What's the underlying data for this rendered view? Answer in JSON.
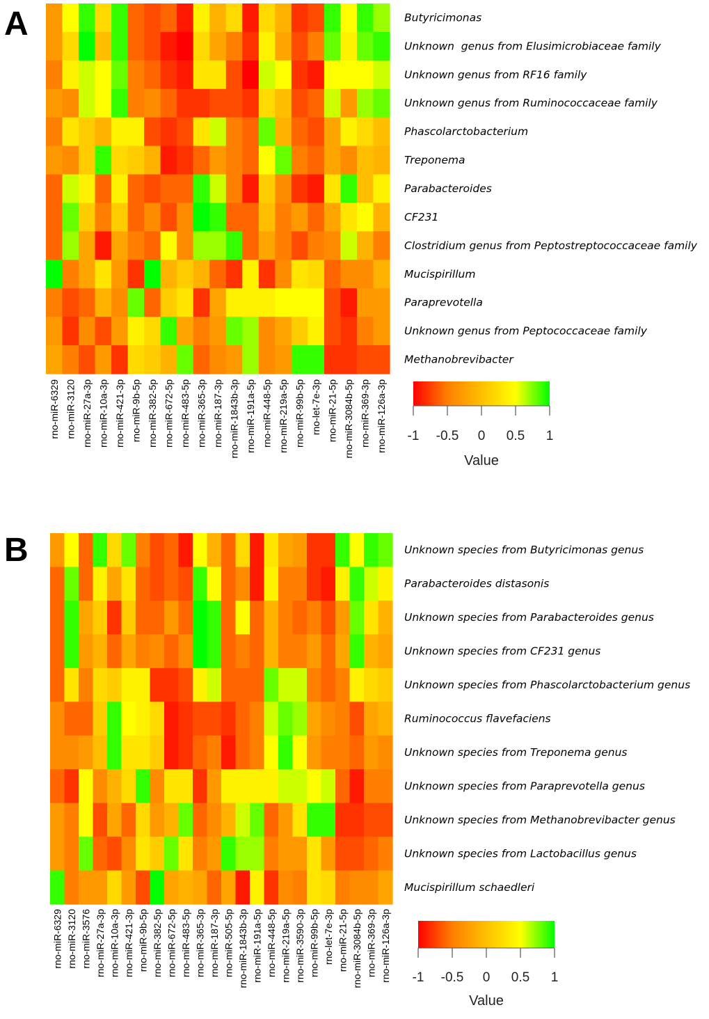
{
  "chart_data": [
    {
      "panel": "A",
      "type": "heatmap",
      "rows": [
        "Butyricimonas",
        "Unknown  genus from Elusimicrobiaceae family",
        "Unknown genus from RF16 family",
        "Unknown genus from Ruminococcaceae family",
        "Phascolarctobacterium",
        "Treponema",
        "Parabacteroides",
        "CF231",
        "Clostridium genus from Peptostreptococcaceae family",
        "Mucispirillum",
        "Paraprevotella",
        "Unknown genus from Peptococcaceae family",
        "Methanobrevibacter"
      ],
      "columns": [
        "rno-miR-6329",
        "rno-miR-3120",
        "rno-miR-27a-3p",
        "rno-miR-10a-3p",
        "rno-miR-421-3p",
        "rno-miR-9b-5p",
        "rno-miR-382-5p",
        "rno-miR-672-5p",
        "rno-miR-483-5p",
        "rno-miR-365-3p",
        "rno-miR-187-3p",
        "rno-miR-1843b-3p",
        "rno-miR-191a-5p",
        "rno-miR-448-5p",
        "rno-miR-219a-5p",
        "rno-miR-99b-5p",
        "rno-let-7e-3p",
        "rno-miR-21-5p",
        "rno-miR-3084b-5p",
        "rno-miR-369-3p",
        "rno-miR-126a-3p"
      ],
      "values": [
        [
          -0.3,
          0.5,
          0.9,
          0.2,
          0.9,
          -0.6,
          -0.7,
          -0.6,
          -0.9,
          0.4,
          -0.1,
          0.2,
          -0.9,
          0.2,
          -0.1,
          -0.8,
          -0.7,
          0.9,
          0.5,
          0.9,
          0.7
        ],
        [
          -0.3,
          0.2,
          1.0,
          0.0,
          0.9,
          -0.6,
          -0.7,
          -0.9,
          -1.0,
          0.2,
          -0.2,
          -0.5,
          -0.8,
          0.4,
          -0.2,
          -0.7,
          -0.5,
          0.8,
          0.4,
          0.8,
          0.9
        ],
        [
          -0.5,
          0.4,
          0.6,
          0.5,
          0.8,
          -0.5,
          -0.6,
          -0.8,
          -0.9,
          0.3,
          0.3,
          -0.7,
          -1.0,
          0.6,
          0.5,
          -0.8,
          -0.9,
          0.5,
          0.5,
          0.5,
          0.6
        ],
        [
          -0.3,
          -0.4,
          0.6,
          0.5,
          0.9,
          -0.5,
          -0.4,
          -0.6,
          -0.8,
          -0.8,
          -0.7,
          -0.7,
          -0.8,
          0.2,
          0.0,
          -0.7,
          -0.6,
          0.6,
          -0.3,
          0.7,
          0.8
        ],
        [
          -0.5,
          0.3,
          0.1,
          -0.1,
          0.4,
          0.4,
          -0.7,
          -0.8,
          -0.7,
          0.3,
          0.6,
          -0.5,
          -0.6,
          0.8,
          -0.1,
          -0.6,
          -0.7,
          -0.2,
          0.4,
          0.2,
          0.0
        ],
        [
          -0.3,
          -0.4,
          0.1,
          0.9,
          0.2,
          0.1,
          -0.1,
          -0.9,
          -0.8,
          -0.6,
          -0.3,
          -0.5,
          -0.6,
          0.5,
          0.8,
          -0.5,
          -0.6,
          -0.2,
          -0.4,
          0.0,
          -0.1
        ],
        [
          -0.6,
          0.6,
          0.4,
          -0.6,
          0.4,
          -0.6,
          -0.7,
          -0.6,
          -0.6,
          0.9,
          0.6,
          -0.5,
          -0.9,
          0.1,
          -0.4,
          -0.8,
          -0.9,
          0.3,
          0.9,
          0.0,
          0.4
        ],
        [
          -0.6,
          0.8,
          0.1,
          -0.5,
          0.1,
          -0.6,
          -0.4,
          -0.7,
          -0.4,
          1.0,
          0.9,
          -0.6,
          -0.6,
          0.0,
          -0.5,
          -0.3,
          -0.6,
          -0.2,
          0.3,
          0.5,
          -0.1
        ],
        [
          -0.6,
          0.7,
          -0.2,
          -0.9,
          -0.2,
          -0.5,
          -0.6,
          0.5,
          -0.4,
          0.7,
          0.7,
          0.9,
          -0.6,
          -0.2,
          -0.5,
          -0.7,
          -0.5,
          -0.4,
          0.6,
          -0.1,
          -0.5
        ],
        [
          1.0,
          -0.5,
          -0.2,
          0.3,
          -0.3,
          -0.8,
          1.0,
          -0.1,
          0.1,
          -0.1,
          -0.6,
          -0.8,
          0.4,
          -0.8,
          -0.4,
          0.3,
          0.2,
          -0.6,
          -0.4,
          -0.4,
          -0.1
        ],
        [
          -0.5,
          -0.7,
          -0.6,
          -0.1,
          -0.4,
          0.8,
          -0.6,
          0.1,
          0.3,
          -0.8,
          -0.2,
          0.4,
          0.4,
          0.4,
          0.5,
          0.5,
          0.5,
          -0.7,
          -0.9,
          -0.3,
          -0.3
        ],
        [
          -0.3,
          -0.8,
          -0.4,
          -0.7,
          -0.3,
          0.4,
          0.2,
          0.9,
          -0.2,
          -0.5,
          -0.3,
          0.8,
          0.7,
          -0.4,
          -0.2,
          0.1,
          0.4,
          -0.7,
          -0.8,
          -0.5,
          -0.3
        ],
        [
          -0.2,
          -0.5,
          -0.7,
          -0.3,
          -0.8,
          0.2,
          0.1,
          -0.1,
          0.8,
          -0.6,
          -0.4,
          -0.3,
          0.7,
          -0.4,
          -0.3,
          0.9,
          0.9,
          -0.8,
          -0.8,
          -0.7,
          -0.7
        ]
      ],
      "legend": {
        "title": "Value",
        "ticks": [
          "-1",
          "-0.5",
          "0",
          "0.5",
          "1"
        ],
        "range": [
          -1,
          1
        ]
      }
    },
    {
      "panel": "B",
      "type": "heatmap",
      "rows": [
        "Unknown species from Butyricimonas genus",
        "Parabacteroides distasonis",
        "Unknown species from Parabacteroides genus",
        "Unknown species from CF231 genus",
        "Unknown species from Phascolarctobacterium genus",
        "Ruminococcus flavefaciens",
        "Unknown species from Treponema genus",
        "Unknown species from Paraprevotella genus",
        "Unknown species from Methanobrevibacter genus",
        "Unknown species from Lactobacillus genus",
        "Mucispirillum schaedleri"
      ],
      "columns": [
        "rno-miR-6329",
        "rno-miR-3120",
        "rno-miR-3576",
        "rno-miR-27a-3p",
        "rno-miR-10a-3p",
        "rno-miR-421-3p",
        "rno-miR-9b-5p",
        "rno-miR-382-5p",
        "rno-miR-672-5p",
        "rno-miR-483-5p",
        "rno-miR-365-3p",
        "rno-miR-187-3p",
        "rno-miR-505-5p",
        "rno-miR-1843b-3p",
        "rno-miR-191a-5p",
        "rno-miR-448-5p",
        "rno-miR-219a-5p",
        "rno-miR-3590-3p",
        "rno-miR-99b-5p",
        "rno-let-7e-3p",
        "rno-miR-21-5p",
        "rno-miR-3084b-5p",
        "rno-miR-369-3p",
        "rno-miR-126a-3p"
      ],
      "values": [
        [
          -0.3,
          0.5,
          -0.6,
          0.9,
          0.2,
          0.8,
          -0.5,
          -0.7,
          -0.6,
          -0.9,
          0.5,
          -0.1,
          -0.6,
          0.2,
          -0.9,
          0.3,
          -0.2,
          -0.3,
          -0.8,
          -0.8,
          0.9,
          0.5,
          0.9,
          0.8
        ],
        [
          -0.6,
          0.8,
          -0.6,
          0.4,
          -0.2,
          0.3,
          -0.6,
          -0.7,
          -0.6,
          -0.7,
          0.9,
          0.5,
          -0.6,
          -0.4,
          -0.9,
          0.4,
          -0.5,
          -0.5,
          -0.8,
          -0.9,
          0.4,
          0.9,
          0.6,
          0.4
        ],
        [
          -0.6,
          0.9,
          -0.2,
          0.1,
          -0.8,
          0.1,
          -0.6,
          -0.6,
          -0.3,
          -0.6,
          1.0,
          0.9,
          -0.6,
          0.5,
          -0.6,
          -0.1,
          -0.5,
          -0.6,
          -0.5,
          -0.7,
          -0.3,
          0.8,
          0.3,
          -0.1
        ],
        [
          -0.6,
          0.9,
          -0.3,
          -0.1,
          -0.6,
          -0.2,
          -0.5,
          -0.4,
          -0.6,
          -0.4,
          1.0,
          0.9,
          -0.6,
          -0.5,
          -0.6,
          -0.1,
          -0.5,
          -0.5,
          -0.3,
          -0.6,
          -0.2,
          0.9,
          -0.1,
          -0.2
        ],
        [
          -0.6,
          0.3,
          -0.5,
          0.2,
          0.1,
          0.4,
          0.4,
          -0.8,
          -0.8,
          -0.7,
          0.4,
          0.6,
          -0.6,
          -0.6,
          -0.6,
          0.8,
          0.6,
          0.6,
          -0.5,
          -0.6,
          -0.5,
          0.4,
          0.2,
          0.1
        ],
        [
          -0.4,
          -0.6,
          -0.6,
          0.1,
          0.9,
          0.5,
          0.4,
          0.2,
          -0.9,
          -0.8,
          -0.7,
          -0.7,
          -0.8,
          -0.6,
          -0.5,
          0.6,
          0.8,
          0.7,
          -0.2,
          -0.4,
          -0.5,
          -0.7,
          -0.2,
          -0.1
        ],
        [
          -0.4,
          -0.4,
          -0.3,
          0.0,
          0.9,
          0.3,
          0.3,
          0.1,
          -0.9,
          -0.8,
          -0.6,
          -0.5,
          -0.9,
          -0.6,
          -0.5,
          0.5,
          0.9,
          0.5,
          -0.3,
          -0.5,
          -0.5,
          -0.6,
          -0.3,
          -0.4
        ],
        [
          -0.6,
          -0.8,
          0.5,
          -0.4,
          -0.1,
          0.2,
          0.9,
          -0.4,
          0.3,
          0.3,
          -0.8,
          -0.3,
          0.4,
          0.4,
          0.4,
          0.4,
          0.6,
          0.6,
          0.5,
          0.6,
          -0.6,
          -0.9,
          -0.5,
          -0.5
        ],
        [
          -0.3,
          -0.5,
          0.5,
          -0.7,
          -0.2,
          -0.6,
          0.2,
          -0.3,
          -0.1,
          0.8,
          -0.6,
          -0.4,
          -0.1,
          0.6,
          0.8,
          -0.6,
          -0.3,
          0.3,
          0.9,
          0.9,
          -0.8,
          -0.8,
          -0.7,
          -0.7
        ],
        [
          -0.3,
          -0.5,
          0.8,
          -0.6,
          -0.7,
          -0.4,
          0.3,
          0.1,
          0.8,
          0.3,
          -0.5,
          -0.3,
          0.9,
          0.7,
          0.7,
          -0.5,
          -0.3,
          -0.3,
          0.3,
          -0.3,
          -0.7,
          -0.7,
          -0.6,
          -0.5
        ],
        [
          0.9,
          -0.5,
          -0.3,
          -0.3,
          0.2,
          -0.3,
          -0.7,
          1.0,
          -0.2,
          -0.1,
          -0.2,
          -0.6,
          -0.2,
          -0.9,
          0.4,
          -0.8,
          -0.4,
          -0.5,
          0.3,
          0.2,
          -0.5,
          -0.4,
          -0.4,
          -0.2
        ]
      ],
      "legend": {
        "title": "Value",
        "ticks": [
          "-1",
          "-0.5",
          "0",
          "0.5",
          "1"
        ],
        "range": [
          -1,
          1
        ]
      }
    }
  ]
}
